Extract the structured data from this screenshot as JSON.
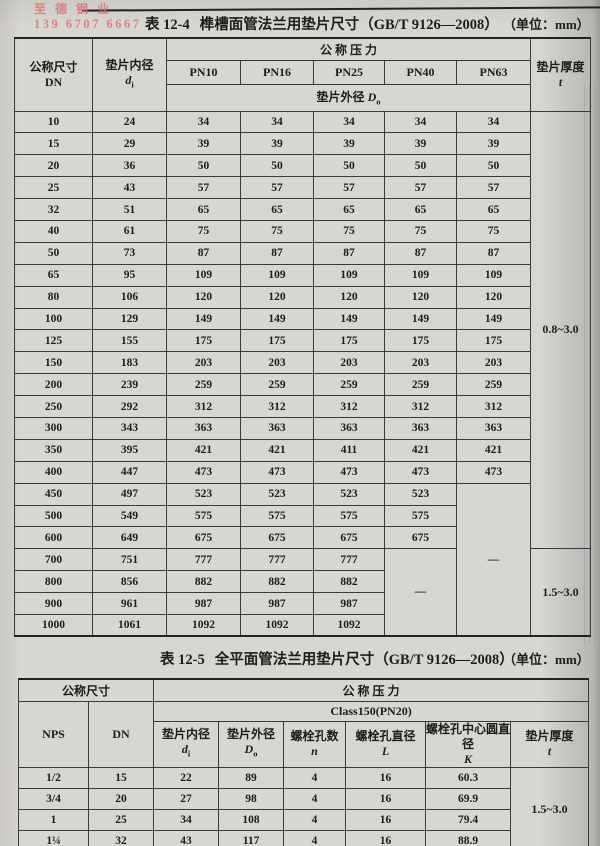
{
  "watermark": {
    "line1": "至德钢业",
    "line2": "139 6707 6667"
  },
  "table1": {
    "title_label": "表 12-4",
    "title": "榫槽面管法兰用垫片尺寸（GB/T 9126—2008）",
    "unit": "（单位：mm）",
    "header": {
      "size": "公称尺寸",
      "size_sub": "DN",
      "inner": "垫片内径",
      "inner_sym": "d",
      "inner_sub": "i",
      "pressure": "公 称 压 力",
      "pn": [
        "PN10",
        "PN16",
        "PN25",
        "PN40",
        "PN63"
      ],
      "outer": "垫片外径",
      "outer_sym": "D",
      "outer_sub": "o",
      "thickness": "垫片厚度",
      "thickness_sym": "t"
    },
    "dash": "—",
    "thickness_top": "0.8~3.0",
    "thickness_bottom": "1.5~3.0",
    "rows": [
      [
        "10",
        "24",
        "34",
        "34",
        "34",
        "34",
        "34"
      ],
      [
        "15",
        "29",
        "39",
        "39",
        "39",
        "39",
        "39"
      ],
      [
        "20",
        "36",
        "50",
        "50",
        "50",
        "50",
        "50"
      ],
      [
        "25",
        "43",
        "57",
        "57",
        "57",
        "57",
        "57"
      ],
      [
        "32",
        "51",
        "65",
        "65",
        "65",
        "65",
        "65"
      ],
      [
        "40",
        "61",
        "75",
        "75",
        "75",
        "75",
        "75"
      ],
      [
        "50",
        "73",
        "87",
        "87",
        "87",
        "87",
        "87"
      ],
      [
        "65",
        "95",
        "109",
        "109",
        "109",
        "109",
        "109"
      ],
      [
        "80",
        "106",
        "120",
        "120",
        "120",
        "120",
        "120"
      ],
      [
        "100",
        "129",
        "149",
        "149",
        "149",
        "149",
        "149"
      ],
      [
        "125",
        "155",
        "175",
        "175",
        "175",
        "175",
        "175"
      ],
      [
        "150",
        "183",
        "203",
        "203",
        "203",
        "203",
        "203"
      ],
      [
        "200",
        "239",
        "259",
        "259",
        "259",
        "259",
        "259"
      ],
      [
        "250",
        "292",
        "312",
        "312",
        "312",
        "312",
        "312"
      ],
      [
        "300",
        "343",
        "363",
        "363",
        "363",
        "363",
        "363"
      ],
      [
        "350",
        "395",
        "421",
        "421",
        "411",
        "421",
        "421"
      ],
      [
        "400",
        "447",
        "473",
        "473",
        "473",
        "473",
        "473"
      ],
      [
        "450",
        "497",
        "523",
        "523",
        "523",
        "523"
      ],
      [
        "500",
        "549",
        "575",
        "575",
        "575",
        "575"
      ],
      [
        "600",
        "649",
        "675",
        "675",
        "675",
        "675"
      ],
      [
        "700",
        "751",
        "777",
        "777",
        "777"
      ],
      [
        "800",
        "856",
        "882",
        "882",
        "882"
      ],
      [
        "900",
        "961",
        "987",
        "987",
        "987"
      ],
      [
        "1000",
        "1061",
        "1092",
        "1092",
        "1092"
      ]
    ]
  },
  "table2": {
    "title_label": "表 12-5",
    "title": "全平面管法兰用垫片尺寸（GB/T 9126—2008）",
    "unit": "（单位：mm）",
    "header": {
      "size": "公称尺寸",
      "pressure": "公 称 压 力",
      "class_row": "Class150(PN20)",
      "nps": "NPS",
      "dn": "DN",
      "inner": "垫片内径",
      "inner_sym": "d",
      "inner_sub": "i",
      "outer": "垫片外径",
      "outer_sym": "D",
      "outer_sub": "o",
      "bolt_count": "螺栓孔数",
      "bolt_count_sym": "n",
      "bolt_dia": "螺栓孔直径",
      "bolt_dia_sym": "L",
      "bolt_circle": "螺栓孔中心圆直径",
      "bolt_circle_sym": "K",
      "thickness": "垫片厚度",
      "thickness_sym": "t"
    },
    "thickness_all": "1.5~3.0",
    "rows": [
      [
        "1/2",
        "15",
        "22",
        "89",
        "4",
        "16",
        "60.3"
      ],
      [
        "3/4",
        "20",
        "27",
        "98",
        "4",
        "16",
        "69.9"
      ],
      [
        "1",
        "25",
        "34",
        "108",
        "4",
        "16",
        "79.4"
      ],
      [
        "1¼",
        "32",
        "43",
        "117",
        "4",
        "16",
        "88.9"
      ]
    ]
  }
}
